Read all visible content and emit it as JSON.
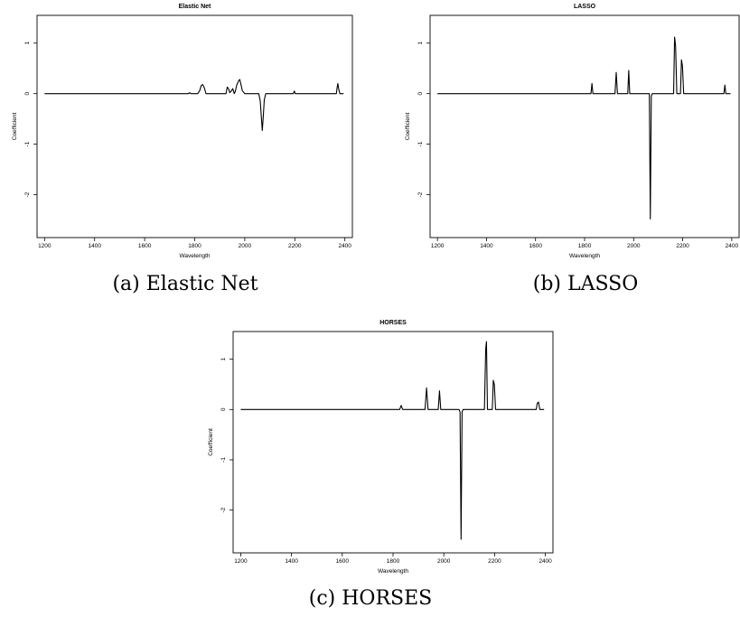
{
  "chart_data": [
    {
      "type": "line",
      "title": "Elastic Net",
      "caption": "(a)  Elastic Net",
      "xlabel": "Wavelength",
      "ylabel": "Coefficient",
      "xticks": [
        1200,
        1400,
        1600,
        1800,
        2000,
        2200,
        2400
      ],
      "yticks": [
        -2,
        -1,
        0,
        1
      ],
      "xlim": [
        1170,
        2430
      ],
      "ylim": [
        -2.85,
        1.55
      ],
      "grid": false,
      "series": [
        {
          "x": [
            1200,
            1775,
            1780,
            1785,
            1812,
            1820,
            1826,
            1832,
            1838,
            1845,
            1925,
            1930,
            1935,
            1940,
            1946,
            1952,
            1958,
            1962,
            1968,
            1975,
            1980,
            1984,
            1990,
            2000,
            2056,
            2062,
            2066,
            2070,
            2074,
            2078,
            2084,
            2194,
            2198,
            2202,
            2366,
            2369,
            2372,
            2375,
            2380,
            2395
          ],
          "y": [
            0,
            0,
            0.02,
            0,
            0,
            0.06,
            0.16,
            0.18,
            0.12,
            0,
            0,
            0.13,
            0.1,
            0.02,
            0.05,
            0.1,
            0,
            0.04,
            0.17,
            0.25,
            0.28,
            0.2,
            0.06,
            0,
            0,
            -0.15,
            -0.45,
            -0.73,
            -0.45,
            -0.12,
            0,
            0,
            0.05,
            0,
            0,
            0.12,
            0.2,
            0.1,
            0,
            0
          ]
        }
      ]
    },
    {
      "type": "line",
      "title": "LASSO",
      "caption": "(b)  LASSO",
      "xlabel": "Wavelength",
      "ylabel": "Coefficient",
      "xticks": [
        1200,
        1400,
        1600,
        1800,
        2000,
        2200,
        2400
      ],
      "yticks": [
        -2,
        -1,
        0,
        1
      ],
      "xlim": [
        1170,
        2430
      ],
      "ylim": [
        -2.85,
        1.55
      ],
      "grid": false,
      "series": [
        {
          "x": [
            1200,
            1826,
            1830,
            1834,
            1924,
            1929,
            1934,
            1976,
            1980,
            1984,
            2064,
            2068,
            2072,
            2076,
            2163,
            2167,
            2171,
            2176,
            2191,
            2195,
            2199,
            2204,
            2368,
            2372,
            2376,
            2395
          ],
          "y": [
            0,
            0,
            0.2,
            0,
            0,
            0.42,
            0,
            0,
            0.46,
            0,
            0,
            -2.48,
            -0.05,
            0,
            0,
            1.12,
            0.95,
            0,
            0,
            0.67,
            0.55,
            0,
            0,
            0.17,
            0,
            0
          ]
        }
      ]
    },
    {
      "type": "line",
      "title": "HORSES",
      "caption": "(c)  HORSES",
      "xlabel": "Wavelength",
      "ylabel": "Coefficient",
      "xticks": [
        1200,
        1400,
        1600,
        1800,
        2000,
        2200,
        2400
      ],
      "yticks": [
        -2,
        -1,
        0,
        1
      ],
      "xlim": [
        1170,
        2430
      ],
      "ylim": [
        -2.85,
        1.55
      ],
      "grid": false,
      "series": [
        {
          "x": [
            1200,
            1826,
            1832,
            1838,
            1926,
            1932,
            1938,
            1978,
            1983,
            1988,
            2060,
            2064,
            2068,
            2072,
            2076,
            2160,
            2165,
            2168,
            2172,
            2191,
            2195,
            2199,
            2204,
            2364,
            2368,
            2373,
            2378,
            2395
          ],
          "y": [
            0,
            0,
            0.08,
            0,
            0,
            0.43,
            0,
            0,
            0.37,
            0,
            0,
            -0.05,
            -2.58,
            -0.05,
            0,
            0,
            1.2,
            1.35,
            0,
            0,
            0.58,
            0.5,
            0,
            0,
            0.12,
            0.15,
            0,
            0
          ]
        }
      ]
    }
  ]
}
